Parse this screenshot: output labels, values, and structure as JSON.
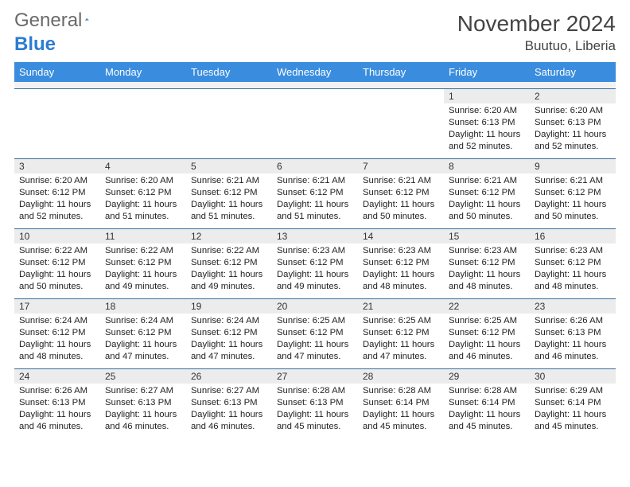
{
  "brand": {
    "text_main": "General",
    "text_accent": "Blue",
    "icon_color": "#1f6bbf"
  },
  "header": {
    "title": "November 2024",
    "location": "Buutuo, Liberia"
  },
  "colors": {
    "header_bg": "#3a8dde",
    "header_fg": "#ffffff",
    "row_border": "#3a6ea5",
    "daynum_bg": "#ececec",
    "spacer_bg": "#f2f2f2",
    "text": "#222222"
  },
  "day_names": [
    "Sunday",
    "Monday",
    "Tuesday",
    "Wednesday",
    "Thursday",
    "Friday",
    "Saturday"
  ],
  "weeks": [
    [
      {
        "n": "",
        "sr": "",
        "ss": "",
        "dl": ""
      },
      {
        "n": "",
        "sr": "",
        "ss": "",
        "dl": ""
      },
      {
        "n": "",
        "sr": "",
        "ss": "",
        "dl": ""
      },
      {
        "n": "",
        "sr": "",
        "ss": "",
        "dl": ""
      },
      {
        "n": "",
        "sr": "",
        "ss": "",
        "dl": ""
      },
      {
        "n": "1",
        "sr": "Sunrise: 6:20 AM",
        "ss": "Sunset: 6:13 PM",
        "dl": "Daylight: 11 hours and 52 minutes."
      },
      {
        "n": "2",
        "sr": "Sunrise: 6:20 AM",
        "ss": "Sunset: 6:13 PM",
        "dl": "Daylight: 11 hours and 52 minutes."
      }
    ],
    [
      {
        "n": "3",
        "sr": "Sunrise: 6:20 AM",
        "ss": "Sunset: 6:12 PM",
        "dl": "Daylight: 11 hours and 52 minutes."
      },
      {
        "n": "4",
        "sr": "Sunrise: 6:20 AM",
        "ss": "Sunset: 6:12 PM",
        "dl": "Daylight: 11 hours and 51 minutes."
      },
      {
        "n": "5",
        "sr": "Sunrise: 6:21 AM",
        "ss": "Sunset: 6:12 PM",
        "dl": "Daylight: 11 hours and 51 minutes."
      },
      {
        "n": "6",
        "sr": "Sunrise: 6:21 AM",
        "ss": "Sunset: 6:12 PM",
        "dl": "Daylight: 11 hours and 51 minutes."
      },
      {
        "n": "7",
        "sr": "Sunrise: 6:21 AM",
        "ss": "Sunset: 6:12 PM",
        "dl": "Daylight: 11 hours and 50 minutes."
      },
      {
        "n": "8",
        "sr": "Sunrise: 6:21 AM",
        "ss": "Sunset: 6:12 PM",
        "dl": "Daylight: 11 hours and 50 minutes."
      },
      {
        "n": "9",
        "sr": "Sunrise: 6:21 AM",
        "ss": "Sunset: 6:12 PM",
        "dl": "Daylight: 11 hours and 50 minutes."
      }
    ],
    [
      {
        "n": "10",
        "sr": "Sunrise: 6:22 AM",
        "ss": "Sunset: 6:12 PM",
        "dl": "Daylight: 11 hours and 50 minutes."
      },
      {
        "n": "11",
        "sr": "Sunrise: 6:22 AM",
        "ss": "Sunset: 6:12 PM",
        "dl": "Daylight: 11 hours and 49 minutes."
      },
      {
        "n": "12",
        "sr": "Sunrise: 6:22 AM",
        "ss": "Sunset: 6:12 PM",
        "dl": "Daylight: 11 hours and 49 minutes."
      },
      {
        "n": "13",
        "sr": "Sunrise: 6:23 AM",
        "ss": "Sunset: 6:12 PM",
        "dl": "Daylight: 11 hours and 49 minutes."
      },
      {
        "n": "14",
        "sr": "Sunrise: 6:23 AM",
        "ss": "Sunset: 6:12 PM",
        "dl": "Daylight: 11 hours and 48 minutes."
      },
      {
        "n": "15",
        "sr": "Sunrise: 6:23 AM",
        "ss": "Sunset: 6:12 PM",
        "dl": "Daylight: 11 hours and 48 minutes."
      },
      {
        "n": "16",
        "sr": "Sunrise: 6:23 AM",
        "ss": "Sunset: 6:12 PM",
        "dl": "Daylight: 11 hours and 48 minutes."
      }
    ],
    [
      {
        "n": "17",
        "sr": "Sunrise: 6:24 AM",
        "ss": "Sunset: 6:12 PM",
        "dl": "Daylight: 11 hours and 48 minutes."
      },
      {
        "n": "18",
        "sr": "Sunrise: 6:24 AM",
        "ss": "Sunset: 6:12 PM",
        "dl": "Daylight: 11 hours and 47 minutes."
      },
      {
        "n": "19",
        "sr": "Sunrise: 6:24 AM",
        "ss": "Sunset: 6:12 PM",
        "dl": "Daylight: 11 hours and 47 minutes."
      },
      {
        "n": "20",
        "sr": "Sunrise: 6:25 AM",
        "ss": "Sunset: 6:12 PM",
        "dl": "Daylight: 11 hours and 47 minutes."
      },
      {
        "n": "21",
        "sr": "Sunrise: 6:25 AM",
        "ss": "Sunset: 6:12 PM",
        "dl": "Daylight: 11 hours and 47 minutes."
      },
      {
        "n": "22",
        "sr": "Sunrise: 6:25 AM",
        "ss": "Sunset: 6:12 PM",
        "dl": "Daylight: 11 hours and 46 minutes."
      },
      {
        "n": "23",
        "sr": "Sunrise: 6:26 AM",
        "ss": "Sunset: 6:13 PM",
        "dl": "Daylight: 11 hours and 46 minutes."
      }
    ],
    [
      {
        "n": "24",
        "sr": "Sunrise: 6:26 AM",
        "ss": "Sunset: 6:13 PM",
        "dl": "Daylight: 11 hours and 46 minutes."
      },
      {
        "n": "25",
        "sr": "Sunrise: 6:27 AM",
        "ss": "Sunset: 6:13 PM",
        "dl": "Daylight: 11 hours and 46 minutes."
      },
      {
        "n": "26",
        "sr": "Sunrise: 6:27 AM",
        "ss": "Sunset: 6:13 PM",
        "dl": "Daylight: 11 hours and 46 minutes."
      },
      {
        "n": "27",
        "sr": "Sunrise: 6:28 AM",
        "ss": "Sunset: 6:13 PM",
        "dl": "Daylight: 11 hours and 45 minutes."
      },
      {
        "n": "28",
        "sr": "Sunrise: 6:28 AM",
        "ss": "Sunset: 6:14 PM",
        "dl": "Daylight: 11 hours and 45 minutes."
      },
      {
        "n": "29",
        "sr": "Sunrise: 6:28 AM",
        "ss": "Sunset: 6:14 PM",
        "dl": "Daylight: 11 hours and 45 minutes."
      },
      {
        "n": "30",
        "sr": "Sunrise: 6:29 AM",
        "ss": "Sunset: 6:14 PM",
        "dl": "Daylight: 11 hours and 45 minutes."
      }
    ]
  ]
}
